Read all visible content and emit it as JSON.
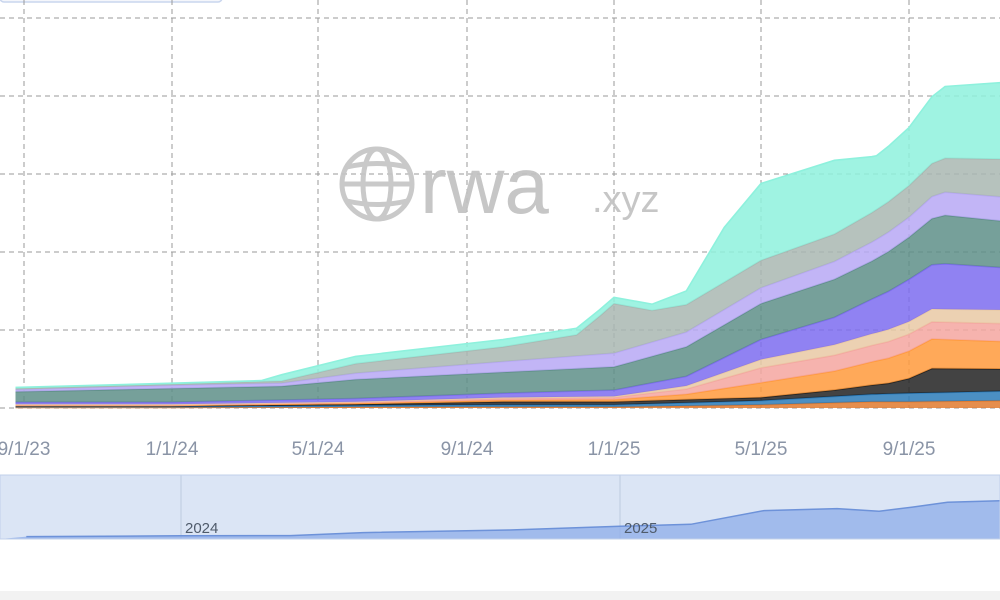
{
  "watermark": {
    "brand": "rwa",
    "suffix": ".xyz",
    "icon": "globe-icon"
  },
  "navigator": {
    "labels": [
      "2024",
      "2025"
    ]
  },
  "chart_data": {
    "type": "area",
    "stacked": true,
    "grid": true,
    "x_tick_labels": [
      "9/1/23",
      "1/1/24",
      "5/1/24",
      "9/1/24",
      "1/1/25",
      "5/1/25",
      "9/1/25"
    ],
    "x_range": [
      "2023-08-25",
      "2025-11-20"
    ],
    "ylim": [
      0,
      37
    ],
    "series": [
      {
        "color": "#e07a2e",
        "values": [
          [
            "2023-08-25",
            0.05
          ],
          [
            "2024-01-01",
            0.05
          ],
          [
            "2024-06-01",
            0.1
          ],
          [
            "2024-10-01",
            0.1
          ],
          [
            "2025-01-01",
            0.1
          ],
          [
            "2025-05-01",
            0.3
          ],
          [
            "2025-08-01",
            0.6
          ],
          [
            "2025-09-01",
            0.6
          ],
          [
            "2025-11-20",
            0.7
          ]
        ]
      },
      {
        "color": "#2b7bb9",
        "values": [
          [
            "2023-08-25",
            0.1
          ],
          [
            "2024-01-01",
            0.1
          ],
          [
            "2024-06-01",
            0.15
          ],
          [
            "2024-10-01",
            0.2
          ],
          [
            "2025-01-01",
            0.2
          ],
          [
            "2025-05-01",
            0.4
          ],
          [
            "2025-08-01",
            0.7
          ],
          [
            "2025-09-01",
            0.8
          ],
          [
            "2025-11-20",
            0.9
          ]
        ]
      },
      {
        "color": "#222222",
        "values": [
          [
            "2023-08-25",
            0.05
          ],
          [
            "2024-01-01",
            0.05
          ],
          [
            "2024-06-01",
            0.1
          ],
          [
            "2024-10-01",
            0.3
          ],
          [
            "2025-01-01",
            0.3
          ],
          [
            "2025-05-01",
            0.3
          ],
          [
            "2025-07-01",
            0.6
          ],
          [
            "2025-08-15",
            1.0
          ],
          [
            "2025-09-01",
            1.4
          ],
          [
            "2025-09-20",
            2.3
          ],
          [
            "2025-11-20",
            2.1
          ]
        ]
      },
      {
        "color": "#ff9a3c",
        "values": [
          [
            "2023-08-25",
            0.05
          ],
          [
            "2024-01-01",
            0.05
          ],
          [
            "2024-06-01",
            0.1
          ],
          [
            "2024-10-01",
            0.15
          ],
          [
            "2025-01-01",
            0.2
          ],
          [
            "2025-03-01",
            0.5
          ],
          [
            "2025-05-01",
            1.4
          ],
          [
            "2025-07-01",
            1.8
          ],
          [
            "2025-09-01",
            2.6
          ],
          [
            "2025-09-20",
            2.8
          ],
          [
            "2025-11-20",
            2.6
          ]
        ]
      },
      {
        "color": "#f4a6a0",
        "values": [
          [
            "2023-08-25",
            0.05
          ],
          [
            "2024-01-01",
            0.05
          ],
          [
            "2024-06-01",
            0.1
          ],
          [
            "2024-10-01",
            0.15
          ],
          [
            "2025-01-01",
            0.2
          ],
          [
            "2025-03-01",
            0.5
          ],
          [
            "2025-05-01",
            1.4
          ],
          [
            "2025-07-01",
            1.5
          ],
          [
            "2025-09-01",
            1.6
          ],
          [
            "2025-11-20",
            1.7
          ]
        ]
      },
      {
        "color": "#e9c9a5",
        "values": [
          [
            "2023-08-25",
            0.05
          ],
          [
            "2024-01-01",
            0.05
          ],
          [
            "2024-06-01",
            0.05
          ],
          [
            "2024-10-01",
            0.1
          ],
          [
            "2025-01-01",
            0.1
          ],
          [
            "2025-03-01",
            0.3
          ],
          [
            "2025-05-01",
            0.8
          ],
          [
            "2025-07-01",
            1.0
          ],
          [
            "2025-09-01",
            1.2
          ],
          [
            "2025-11-20",
            1.3
          ]
        ]
      },
      {
        "color": "#7d6cf0",
        "values": [
          [
            "2023-08-25",
            0.2
          ],
          [
            "2024-01-01",
            0.2
          ],
          [
            "2024-06-01",
            0.3
          ],
          [
            "2024-10-01",
            0.4
          ],
          [
            "2025-01-01",
            0.6
          ],
          [
            "2025-03-01",
            0.9
          ],
          [
            "2025-05-01",
            1.9
          ],
          [
            "2025-07-01",
            2.6
          ],
          [
            "2025-09-01",
            4.0
          ],
          [
            "2025-10-01",
            4.3
          ],
          [
            "2025-11-20",
            4.0
          ]
        ]
      },
      {
        "color": "#5e8f88",
        "values": [
          [
            "2023-08-25",
            1.0
          ],
          [
            "2024-01-01",
            1.3
          ],
          [
            "2024-04-01",
            1.3
          ],
          [
            "2024-06-01",
            1.8
          ],
          [
            "2024-10-01",
            2.0
          ],
          [
            "2025-01-01",
            2.2
          ],
          [
            "2025-03-01",
            2.8
          ],
          [
            "2025-05-01",
            3.4
          ],
          [
            "2025-07-01",
            3.6
          ],
          [
            "2025-08-01",
            3.6
          ],
          [
            "2025-09-01",
            4.0
          ],
          [
            "2025-10-01",
            4.6
          ],
          [
            "2025-11-20",
            4.4
          ]
        ]
      },
      {
        "color": "#b7a8f5",
        "values": [
          [
            "2023-08-25",
            0.2
          ],
          [
            "2024-01-01",
            0.3
          ],
          [
            "2024-04-01",
            0.3
          ],
          [
            "2024-06-01",
            0.6
          ],
          [
            "2024-10-01",
            1.0
          ],
          [
            "2025-01-01",
            1.3
          ],
          [
            "2025-03-01",
            1.4
          ],
          [
            "2025-05-01",
            1.5
          ],
          [
            "2025-07-01",
            1.7
          ],
          [
            "2025-09-01",
            1.9
          ],
          [
            "2025-10-01",
            2.2
          ],
          [
            "2025-11-20",
            2.3
          ]
        ]
      },
      {
        "color": "#a9b7b2",
        "values": [
          [
            "2023-08-25",
            0.1
          ],
          [
            "2024-01-01",
            0.1
          ],
          [
            "2024-04-01",
            0.2
          ],
          [
            "2024-06-01",
            0.9
          ],
          [
            "2024-10-01",
            1.4
          ],
          [
            "2024-12-01",
            2.0
          ],
          [
            "2024-12-20",
            3.6
          ],
          [
            "2025-01-01",
            4.7
          ],
          [
            "2025-02-01",
            3.0
          ],
          [
            "2025-03-01",
            2.6
          ],
          [
            "2025-05-01",
            2.6
          ],
          [
            "2025-07-01",
            2.6
          ],
          [
            "2025-09-01",
            3.0
          ],
          [
            "2025-11-20",
            3.6
          ]
        ]
      },
      {
        "color": "#8ef1dd",
        "values": [
          [
            "2023-08-25",
            0.1
          ],
          [
            "2024-01-01",
            0.1
          ],
          [
            "2024-03-15",
            0.1
          ],
          [
            "2024-04-01",
            0.6
          ],
          [
            "2024-06-01",
            0.7
          ],
          [
            "2024-10-01",
            0.7
          ],
          [
            "2025-01-01",
            0.6
          ],
          [
            "2025-02-01",
            0.6
          ],
          [
            "2025-03-01",
            1.3
          ],
          [
            "2025-04-01",
            5.2
          ],
          [
            "2025-05-01",
            7.3
          ],
          [
            "2025-07-01",
            7.0
          ],
          [
            "2025-08-05",
            5.1
          ],
          [
            "2025-09-01",
            5.5
          ],
          [
            "2025-10-01",
            6.8
          ],
          [
            "2025-11-20",
            7.3
          ]
        ]
      }
    ]
  },
  "navigator_data": {
    "values": [
      [
        "2023-08-25",
        1.2
      ],
      [
        "2024-01-01",
        1.6
      ],
      [
        "2024-04-01",
        1.7
      ],
      [
        "2024-06-01",
        3.2
      ],
      [
        "2024-10-01",
        4.5
      ],
      [
        "2025-01-01",
        6.4
      ],
      [
        "2025-03-01",
        7.4
      ],
      [
        "2025-05-01",
        14.3
      ],
      [
        "2025-07-01",
        15.3
      ],
      [
        "2025-08-05",
        14.0
      ],
      [
        "2025-09-01",
        16.0
      ],
      [
        "2025-10-01",
        18.5
      ],
      [
        "2025-11-20",
        19.2
      ]
    ]
  }
}
